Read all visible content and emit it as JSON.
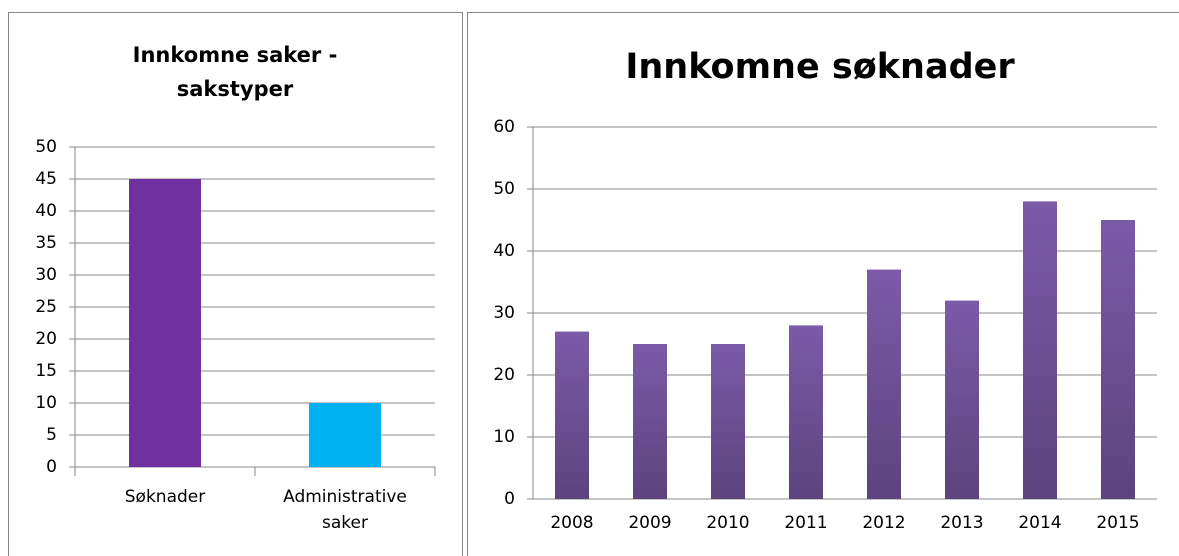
{
  "chart_data": [
    {
      "type": "bar",
      "title": "Innkomne saker - sakstyper",
      "categories": [
        "Søknader",
        "Administrative saker"
      ],
      "values": [
        45,
        10
      ],
      "colors": [
        "#7030a0",
        "#00b0f0"
      ],
      "ylim": [
        0,
        50
      ],
      "yticks": [
        0,
        5,
        10,
        15,
        20,
        25,
        30,
        35,
        40,
        45,
        50
      ],
      "grid": true
    },
    {
      "type": "bar",
      "title": "Innkomne søknader",
      "categories": [
        "2008",
        "2009",
        "2010",
        "2011",
        "2012",
        "2013",
        "2014",
        "2015"
      ],
      "values": [
        27,
        25,
        25,
        28,
        37,
        32,
        48,
        45
      ],
      "color": "#7b5aa8",
      "ylim": [
        0,
        60
      ],
      "yticks": [
        0,
        10,
        20,
        30,
        40,
        50,
        60
      ],
      "grid": true
    }
  ]
}
